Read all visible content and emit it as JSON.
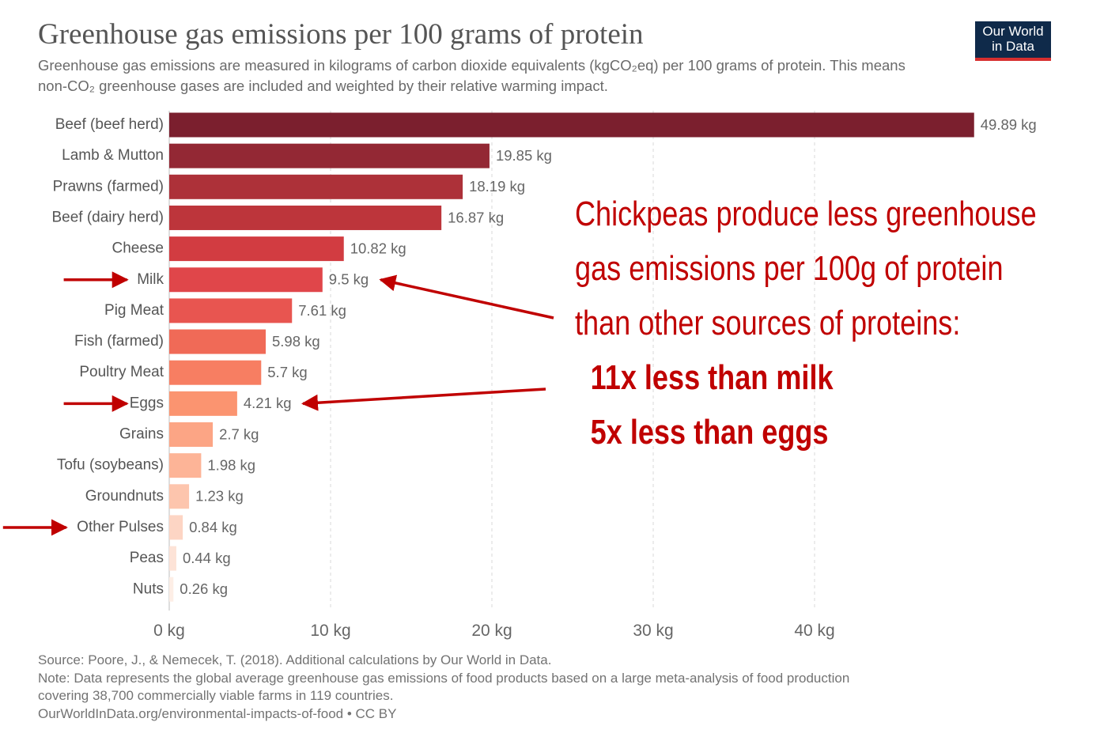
{
  "header": {
    "title": "Greenhouse gas emissions per 100 grams of protein",
    "subtitle": "Greenhouse gas emissions are measured in kilograms of carbon dioxide equivalents (kgCO₂eq) per 100 grams of protein. This means non-CO₂ greenhouse gases are included and weighted by their relative warming impact.",
    "logo_line1": "Our World",
    "logo_line2": "in Data"
  },
  "chart_data": {
    "type": "bar",
    "orientation": "horizontal",
    "categories": [
      "Beef (beef herd)",
      "Lamb & Mutton",
      "Prawns (farmed)",
      "Beef (dairy herd)",
      "Cheese",
      "Milk",
      "Pig Meat",
      "Fish (farmed)",
      "Poultry Meat",
      "Eggs",
      "Grains",
      "Tofu (soybeans)",
      "Groundnuts",
      "Other Pulses",
      "Peas",
      "Nuts"
    ],
    "values": [
      49.89,
      19.85,
      18.19,
      16.87,
      10.82,
      9.5,
      7.61,
      5.98,
      5.7,
      4.21,
      2.7,
      1.98,
      1.23,
      0.84,
      0.44,
      0.26
    ],
    "value_labels": [
      "49.89 kg",
      "19.85 kg",
      "18.19 kg",
      "16.87 kg",
      "10.82 kg",
      "9.5 kg",
      "7.61 kg",
      "5.98 kg",
      "5.7 kg",
      "4.21 kg",
      "2.7 kg",
      "1.98 kg",
      "1.23 kg",
      "0.84 kg",
      "0.44 kg",
      "0.26 kg"
    ],
    "colors": [
      "#7b1f2e",
      "#932834",
      "#ad3139",
      "#bd353b",
      "#d23c41",
      "#e0464a",
      "#e85550",
      "#f06a57",
      "#f77e62",
      "#fb9470",
      "#fca585",
      "#fdb497",
      "#fdc5ad",
      "#fdd5c4",
      "#fde3d7",
      "#fdeee6"
    ],
    "xlim": [
      0,
      50
    ],
    "x_ticks": [
      0,
      10,
      20,
      30,
      40
    ],
    "x_tick_labels": [
      "0 kg",
      "10 kg",
      "20 kg",
      "30 kg",
      "40 kg"
    ],
    "grid": "vertical dashed",
    "highlight_arrows_on": [
      "Milk",
      "Eggs",
      "Other Pulses"
    ],
    "pointer_arrows_to": [
      "Milk",
      "Eggs"
    ],
    "accent_color": "#c00000"
  },
  "annotation": {
    "line1": "Chickpeas produce less greenhouse",
    "line2": "gas emissions per 100g of protein",
    "line3": "than other sources of proteins:",
    "line4": "11x less than milk",
    "line5": "5x less than eggs"
  },
  "footer": {
    "source": "Source: Poore, J., & Nemecek, T. (2018). Additional calculations by Our World in Data.",
    "note1": "Note: Data represents the global average greenhouse gas emissions of food products based on a large meta-analysis of food production",
    "note2": "covering 38,700 commercially viable farms in 119 countries.",
    "link": "OurWorldInData.org/environmental-impacts-of-food • CC BY"
  }
}
